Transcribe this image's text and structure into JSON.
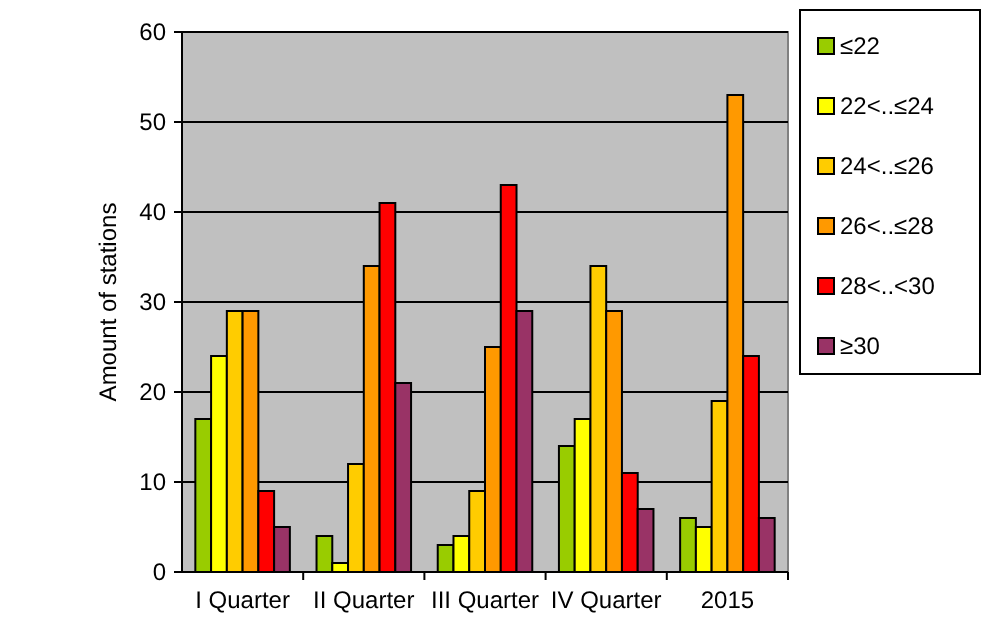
{
  "chart_data": {
    "type": "bar",
    "ylabel": "Amount of stations",
    "categories": [
      "I Quarter",
      "II Quarter",
      "III Quarter",
      "IV Quarter",
      "2015"
    ],
    "series": [
      {
        "name": "≤22",
        "color": "#99cc00",
        "values": [
          17,
          4,
          3,
          14,
          6
        ]
      },
      {
        "name": "22<..≤24",
        "color": "#ffff00",
        "values": [
          24,
          1,
          4,
          17,
          5
        ]
      },
      {
        "name": "24<..≤26",
        "color": "#ffcc00",
        "values": [
          29,
          12,
          9,
          34,
          19
        ]
      },
      {
        "name": "26<..≤28",
        "color": "#ff9900",
        "values": [
          29,
          34,
          25,
          29,
          53
        ]
      },
      {
        "name": "28<..<30",
        "color": "#ff0000",
        "values": [
          9,
          41,
          43,
          11,
          24
        ]
      },
      {
        "name": "≥30",
        "color": "#993366",
        "values": [
          5,
          21,
          29,
          7,
          6
        ]
      }
    ],
    "ylim": [
      0,
      60
    ],
    "yticks": [
      0,
      10,
      20,
      30,
      40,
      50,
      60
    ],
    "grid": "y",
    "legend": "right"
  }
}
